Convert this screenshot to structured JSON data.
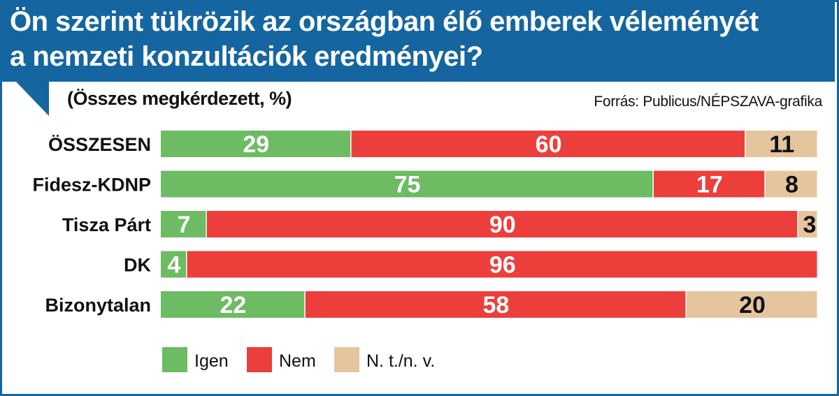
{
  "title": {
    "line1": "Ön szerint tükrözik az országban élő emberek véleményét",
    "line2": "a nemzeti konzultációk eredményei?"
  },
  "subtitle": "(Összes megkérdezett, %)",
  "source": "Forrás: Publicus/NÉPSZAVA-grafika",
  "colors": {
    "header": "#1566a0",
    "igen": "#6dbb63",
    "nem": "#ec3f3c",
    "ntnv": "#e4c59e",
    "label_light": "#ffffff",
    "label_dark": "#111111"
  },
  "chart_data": {
    "type": "bar",
    "orientation": "horizontal",
    "stacked": true,
    "title": "Ön szerint tükrözik az országban élő emberek véleményét a nemzeti konzultációk eredményei?",
    "unit": "%",
    "xlim": [
      0,
      100
    ],
    "categories": [
      "ÖSSZESEN",
      "Fidesz-KDNP",
      "Tisza Párt",
      "DK",
      "Bizonytalan"
    ],
    "series": [
      {
        "name": "Igen",
        "key": "igen",
        "values": [
          29,
          75,
          7,
          4,
          22
        ]
      },
      {
        "name": "Nem",
        "key": "nem",
        "values": [
          60,
          17,
          90,
          96,
          58
        ]
      },
      {
        "name": "N. t./n. v.",
        "key": "ntnv",
        "values": [
          11,
          8,
          3,
          0,
          20
        ]
      }
    ],
    "legend": [
      "Igen",
      "Nem",
      "N. t./n. v."
    ],
    "legend_position": "bottom"
  }
}
